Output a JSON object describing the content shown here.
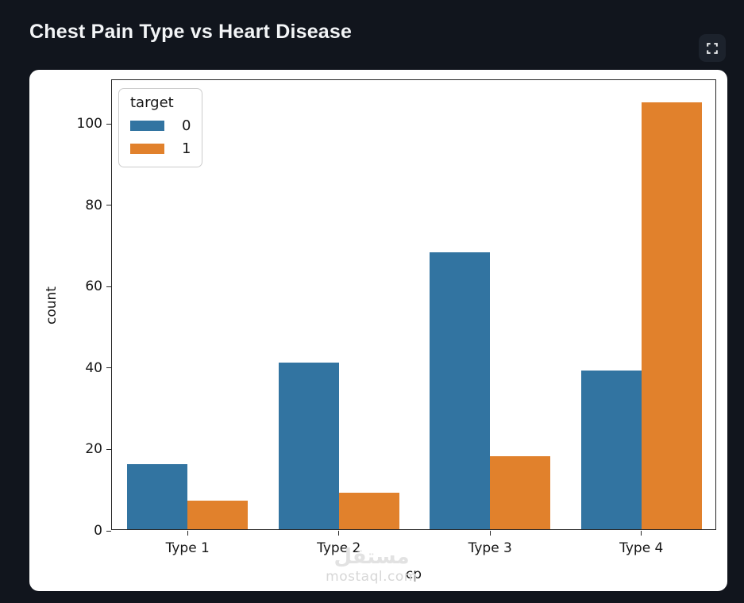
{
  "header": {
    "title": "Chest Pain Type vs Heart Disease"
  },
  "colors": {
    "background": "#11151d",
    "card": "#ffffff",
    "title_text": "#f3f5f7",
    "series_blue": "#3274a1",
    "series_orange": "#e1812c",
    "axis": "#262626"
  },
  "watermark": {
    "logo": "مستقل",
    "domain": "mostaql.com"
  },
  "chart_data": {
    "type": "bar",
    "title": "Chest Pain Type vs Heart Disease",
    "categories": [
      "Type 1",
      "Type 2",
      "Type 3",
      "Type 4"
    ],
    "series": [
      {
        "name": "0",
        "color": "#3274a1",
        "values": [
          16,
          41,
          68,
          39
        ]
      },
      {
        "name": "1",
        "color": "#e1812c",
        "values": [
          7,
          9,
          18,
          105
        ]
      }
    ],
    "xlabel": "cp",
    "ylabel": "count",
    "yticks": [
      0,
      20,
      40,
      60,
      80,
      100
    ],
    "ylim": [
      0,
      110.8
    ],
    "legend": {
      "title": "target",
      "position": "upper-left"
    },
    "grid": false,
    "bar_group_fraction": 0.8
  }
}
